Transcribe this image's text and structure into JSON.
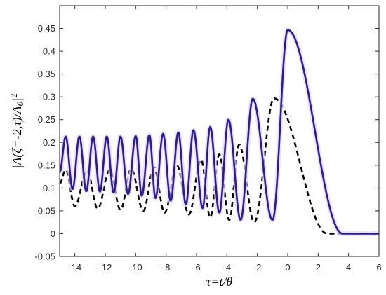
{
  "chart_data": {
    "type": "line",
    "title": "",
    "xlabel": "τ=t/θ",
    "ylabel": "|A(ζ=-2,τ)/A0|2",
    "xlim": [
      -15,
      6
    ],
    "ylim": [
      -0.05,
      0.5
    ],
    "x_ticks": [
      "-14",
      "-12",
      "-10",
      "-8",
      "-6",
      "-4",
      "-2",
      "0",
      "2",
      "4",
      "6"
    ],
    "y_ticks": [
      "-0.05",
      "0",
      "0.05",
      "0.1",
      "0.15",
      "0.2",
      "0.25",
      "0.3",
      "0.35",
      "0.4",
      "0.45"
    ],
    "grid": false,
    "colors": {
      "solid": "#2a1c96",
      "dashed": "#000000",
      "axis": "#262626"
    },
    "series": [
      {
        "style": "solid",
        "peaks": [
          [
            -14.6,
            0.213
          ],
          [
            -13.7,
            0.213
          ],
          [
            -12.8,
            0.213
          ],
          [
            -11.9,
            0.213
          ],
          [
            -11.0,
            0.213
          ],
          [
            -10.0,
            0.214
          ],
          [
            -9.1,
            0.216
          ],
          [
            -8.2,
            0.219
          ],
          [
            -7.2,
            0.222
          ],
          [
            -6.2,
            0.227
          ],
          [
            -5.1,
            0.234
          ],
          [
            -3.9,
            0.25
          ],
          [
            -2.3,
            0.296
          ],
          [
            0.0,
            0.447
          ]
        ],
        "troughs": [
          [
            -15.0,
            0.135
          ],
          [
            -14.15,
            0.098
          ],
          [
            -13.25,
            0.093
          ],
          [
            -12.35,
            0.092
          ],
          [
            -11.45,
            0.09
          ],
          [
            -10.5,
            0.087
          ],
          [
            -9.6,
            0.083
          ],
          [
            -8.7,
            0.078
          ],
          [
            -7.7,
            0.072
          ],
          [
            -6.7,
            0.064
          ],
          [
            -5.6,
            0.056
          ],
          [
            -4.5,
            0.046
          ],
          [
            -3.1,
            0.03
          ],
          [
            -1.0,
            0.03
          ],
          [
            3.6,
            0.0
          ],
          [
            6.0,
            0.0
          ]
        ]
      },
      {
        "style": "dashed",
        "peaks": [
          [
            -14.6,
            0.14
          ],
          [
            -13.2,
            0.138
          ],
          [
            -11.7,
            0.14
          ],
          [
            -10.3,
            0.142
          ],
          [
            -8.8,
            0.145
          ],
          [
            -7.3,
            0.15
          ],
          [
            -5.7,
            0.162
          ],
          [
            -4.5,
            0.174
          ],
          [
            -3.2,
            0.195
          ],
          [
            -0.9,
            0.297
          ]
        ],
        "troughs": [
          [
            -15.0,
            0.11
          ],
          [
            -14.0,
            0.06
          ],
          [
            -12.5,
            0.055
          ],
          [
            -11.0,
            0.052
          ],
          [
            -9.5,
            0.05
          ],
          [
            -8.1,
            0.046
          ],
          [
            -6.5,
            0.042
          ],
          [
            -5.1,
            0.036
          ],
          [
            -3.85,
            0.03
          ],
          [
            -2.2,
            0.025
          ],
          [
            2.6,
            0.0
          ],
          [
            6.0,
            0.0
          ]
        ]
      }
    ]
  }
}
